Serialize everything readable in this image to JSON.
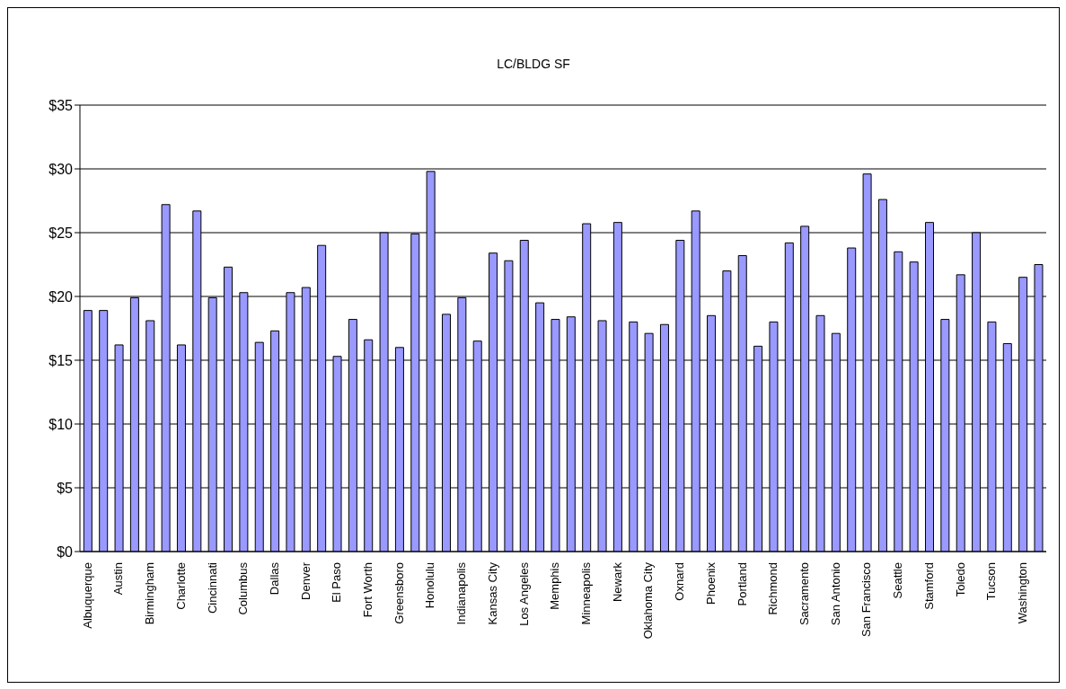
{
  "chart_data": {
    "type": "bar",
    "title": "LC/BLDG SF",
    "categories": [
      "Albuquerque",
      null,
      "Austin",
      null,
      "Birmingham",
      null,
      "Charlotte",
      null,
      "Cincinnati",
      null,
      "Columbus",
      null,
      "Dallas",
      null,
      "Denver",
      null,
      "El Paso",
      null,
      "Fort Worth",
      null,
      "Greensboro",
      null,
      "Honolulu",
      null,
      "Indianapolis",
      null,
      "Kansas City",
      null,
      "Los Angeles",
      null,
      "Memphis",
      null,
      "Minneapolis",
      null,
      "Newark",
      null,
      "Oklahoma City",
      null,
      "Oxnard",
      null,
      "Phoenix",
      null,
      "Portland",
      null,
      "Richmond",
      null,
      "Sacramento",
      null,
      "San Antonio",
      null,
      "San Francisco",
      null,
      "Seattle",
      null,
      "Stamford",
      null,
      "Toledo",
      null,
      "Tucson",
      null,
      "Washington",
      null
    ],
    "values": [
      18.9,
      18.9,
      16.2,
      19.9,
      18.1,
      27.2,
      16.2,
      26.7,
      19.9,
      22.3,
      20.3,
      16.4,
      17.3,
      20.3,
      20.7,
      24.0,
      15.3,
      18.2,
      16.6,
      25.0,
      16.0,
      24.9,
      29.8,
      18.6,
      19.9,
      16.5,
      23.4,
      22.8,
      24.4,
      19.5,
      18.2,
      18.4,
      25.7,
      18.1,
      25.8,
      18.0,
      17.1,
      17.8,
      24.4,
      26.7,
      18.5,
      22.0,
      23.2,
      16.1,
      18.0,
      24.2,
      25.5,
      18.5,
      17.1,
      23.8,
      29.6,
      27.6,
      23.5,
      22.7,
      25.8,
      18.2,
      21.7,
      25.0,
      18.0,
      16.3,
      21.5,
      22.5
    ],
    "color": "#9999ff",
    "ylim": [
      0,
      35
    ],
    "yticks": [
      {
        "value": 0,
        "label": "$0"
      },
      {
        "value": 5,
        "label": "$5"
      },
      {
        "value": 10,
        "label": "$10"
      },
      {
        "value": 15,
        "label": "$15"
      },
      {
        "value": 20,
        "label": "$20"
      },
      {
        "value": 25,
        "label": "$25"
      },
      {
        "value": 30,
        "label": "$30"
      },
      {
        "value": 35,
        "label": "$35"
      }
    ],
    "grid": "y"
  }
}
